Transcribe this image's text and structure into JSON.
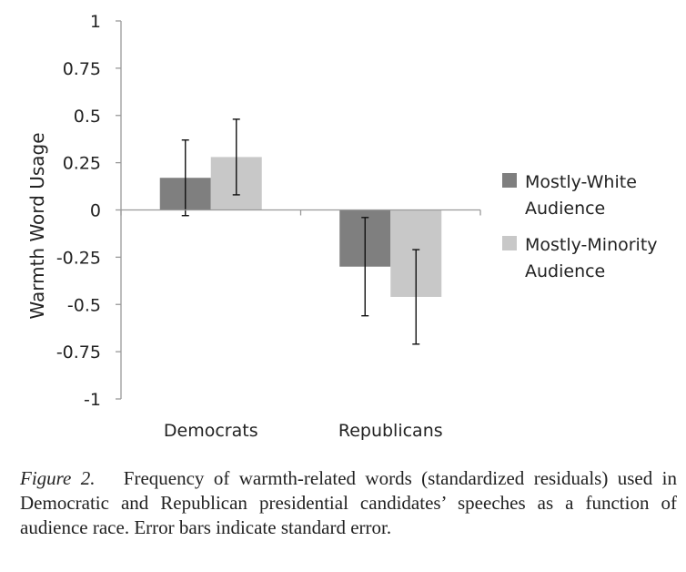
{
  "chart_data": {
    "type": "bar",
    "categories": [
      "Democrats",
      "Republicans"
    ],
    "series": [
      {
        "name": "Mostly-White Audience",
        "values": [
          0.17,
          -0.3
        ],
        "error": [
          0.2,
          0.26
        ],
        "color": "#7f7f7f"
      },
      {
        "name": "Mostly-Minority Audience",
        "values": [
          0.28,
          -0.46
        ],
        "error": [
          0.2,
          0.25
        ],
        "color": "#c8c8c8"
      }
    ],
    "legend_lines": [
      [
        "Mostly-White",
        "Audience"
      ],
      [
        "Mostly-Minority",
        "Audience"
      ]
    ],
    "ylabel": "Warmth Word Usage",
    "ylim": [
      -1,
      1
    ],
    "yticks": [
      "1",
      "0.75",
      "0.5",
      "0.25",
      "0",
      "-0.25",
      "-0.5",
      "-0.75",
      "-1"
    ],
    "legend_position": "right",
    "grid": false
  },
  "caption": {
    "label": "Figure 2.",
    "text": "Frequency of warmth-related words (standardized residuals) used in Democratic and Republican presidential candidates’ speeches as a function of audience race. Error bars indicate standard error."
  }
}
